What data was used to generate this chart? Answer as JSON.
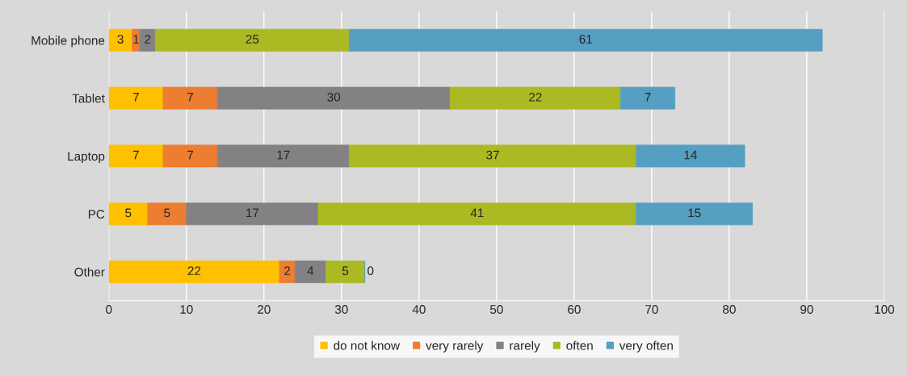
{
  "chart_data": {
    "type": "bar",
    "orientation": "horizontal",
    "stacked": true,
    "data_labels": true,
    "categories": [
      "Mobile phone",
      "Tablet",
      "Laptop",
      "PC",
      "Other"
    ],
    "series": [
      {
        "name": "do not know",
        "color": "#ffc000",
        "values": [
          3,
          7,
          7,
          5,
          22
        ]
      },
      {
        "name": "very rarely",
        "color": "#ed7d31",
        "values": [
          1,
          7,
          7,
          5,
          2
        ]
      },
      {
        "name": "rarely",
        "color": "#838184",
        "values": [
          2,
          30,
          17,
          17,
          4
        ]
      },
      {
        "name": "often",
        "color": "#abba22",
        "values": [
          25,
          22,
          37,
          41,
          5
        ]
      },
      {
        "name": "very often",
        "color": "#559fc2",
        "values": [
          61,
          7,
          14,
          15,
          0
        ]
      }
    ],
    "xlim": [
      0,
      100
    ],
    "xticks": [
      0,
      10,
      20,
      30,
      40,
      50,
      60,
      70,
      80,
      90,
      100
    ],
    "grid": "x",
    "legend": "bottom"
  }
}
